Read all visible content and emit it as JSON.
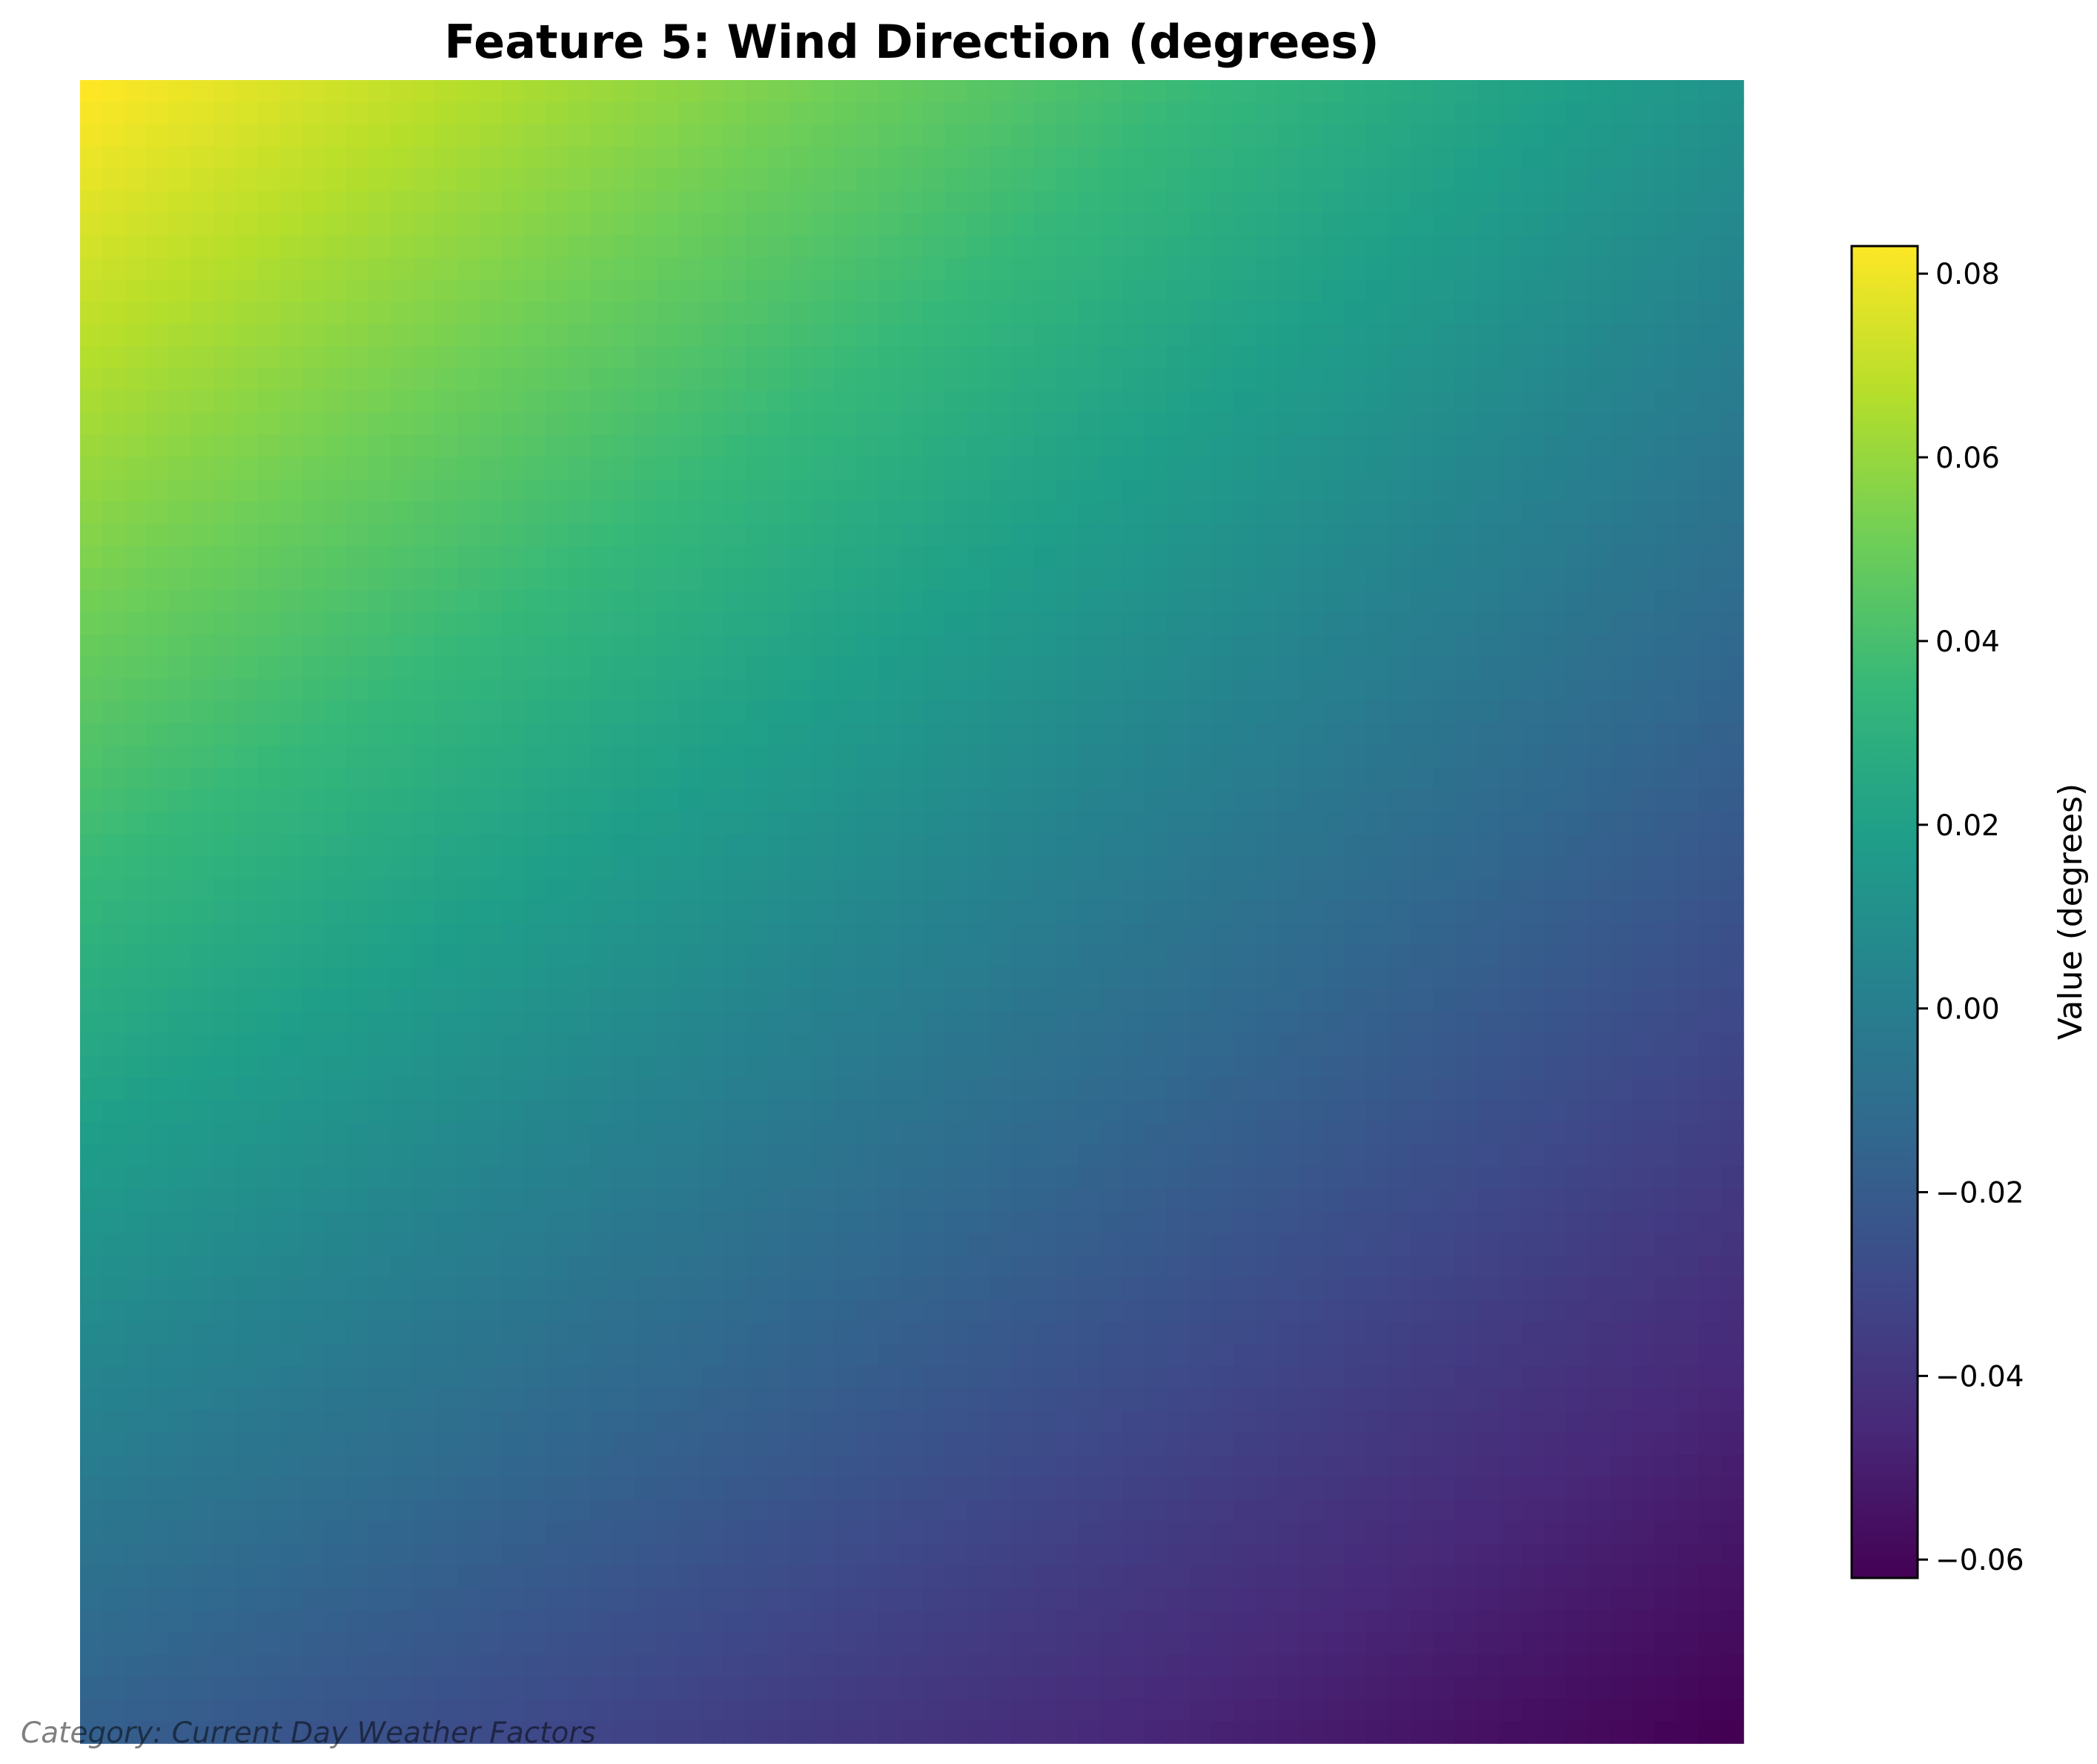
{
  "chart_data": {
    "type": "heatmap",
    "title": "Feature 5: Wind Direction (degrees)",
    "colormap": "viridis",
    "grid": false,
    "axes_visible": false,
    "value_range": [
      -0.062,
      0.083
    ],
    "corner_values": {
      "top_left": 0.083,
      "top_right": 0.012,
      "bottom_left": -0.018,
      "bottom_right": -0.062
    },
    "grid_size": 75,
    "colorbar": {
      "label": "Value (degrees)",
      "ticks": [
        -0.06,
        -0.04,
        -0.02,
        0.0,
        0.02,
        0.04,
        0.06,
        0.08
      ],
      "tick_labels": [
        "−0.06",
        "−0.04",
        "−0.02",
        "0.00",
        "0.02",
        "0.04",
        "0.06",
        "0.08"
      ]
    },
    "annotation": "Category: Current Day Weather Factors"
  }
}
